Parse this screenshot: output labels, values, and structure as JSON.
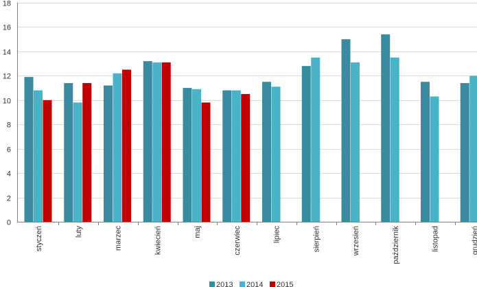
{
  "chart_data": {
    "type": "bar",
    "title": "",
    "xlabel": "",
    "ylabel": "",
    "ylim": [
      0,
      18
    ],
    "yticks": [
      0,
      2,
      4,
      6,
      8,
      10,
      12,
      14,
      16,
      18
    ],
    "grid": true,
    "legend_position": "bottom",
    "categories": [
      "styczeń",
      "luty",
      "marzec",
      "kwiecień",
      "maj",
      "czerwiec",
      "lipiec",
      "sierpień",
      "wrzesień",
      "październik",
      "listopad",
      "grudzień"
    ],
    "series": [
      {
        "name": "2013",
        "color": "#3a8ba0",
        "values": [
          11.9,
          11.4,
          11.2,
          13.2,
          11.0,
          10.8,
          11.5,
          12.8,
          15.0,
          15.4,
          11.5,
          11.4
        ]
      },
      {
        "name": "2014",
        "color": "#4ab3c8",
        "values": [
          10.8,
          9.8,
          12.2,
          13.1,
          10.9,
          10.8,
          11.1,
          13.5,
          13.1,
          13.5,
          10.3,
          12.0
        ]
      },
      {
        "name": "2015",
        "color": "#c00000",
        "values": [
          10.0,
          11.4,
          12.5,
          13.1,
          9.8,
          10.5,
          null,
          null,
          null,
          null,
          null,
          null
        ]
      }
    ]
  }
}
